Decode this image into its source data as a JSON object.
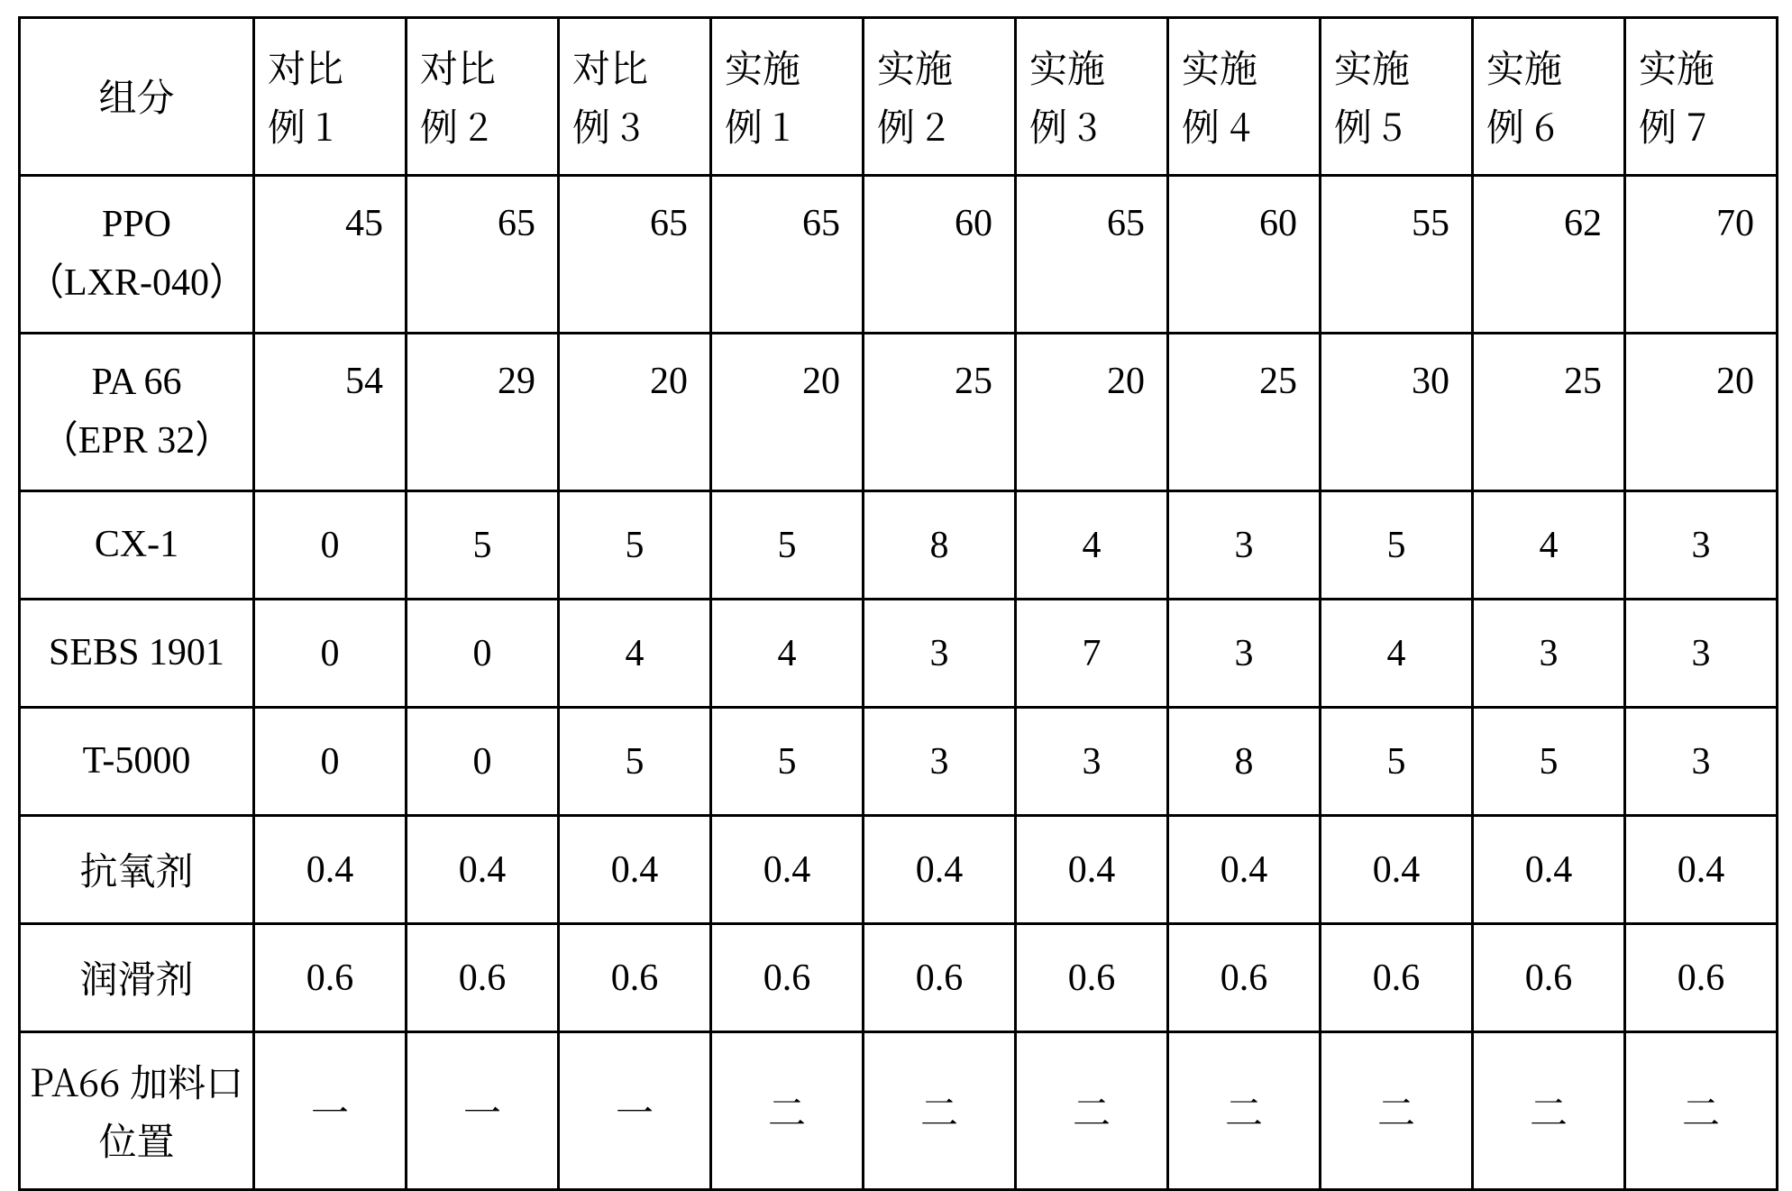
{
  "table": {
    "type": "table",
    "background_color": "#ffffff",
    "border_color": "#000000",
    "font_size_pt": 32,
    "columns": [
      {
        "key": "component",
        "label_l1": "组分",
        "label_l2": "",
        "align": "center"
      },
      {
        "key": "c1",
        "label_l1": "对比",
        "label_l2": "例 1",
        "align": "right"
      },
      {
        "key": "c2",
        "label_l1": "对比",
        "label_l2": "例 2",
        "align": "right"
      },
      {
        "key": "c3",
        "label_l1": "对比",
        "label_l2": "例 3",
        "align": "right"
      },
      {
        "key": "e1",
        "label_l1": "实施",
        "label_l2": "例 1",
        "align": "right"
      },
      {
        "key": "e2",
        "label_l1": "实施",
        "label_l2": "例 2",
        "align": "right"
      },
      {
        "key": "e3",
        "label_l1": "实施",
        "label_l2": "例 3",
        "align": "right"
      },
      {
        "key": "e4",
        "label_l1": "实施",
        "label_l2": "例 4",
        "align": "right"
      },
      {
        "key": "e5",
        "label_l1": "实施",
        "label_l2": "例 5",
        "align": "right"
      },
      {
        "key": "e6",
        "label_l1": "实施",
        "label_l2": "例 6",
        "align": "right"
      },
      {
        "key": "e7",
        "label_l1": "实施",
        "label_l2": "例 7",
        "align": "right"
      }
    ],
    "rows": [
      {
        "label_l1": "PPO",
        "label_l2": "（LXR-040）",
        "label_en": true,
        "tall": true,
        "align": "right",
        "cells": [
          "45",
          "65",
          "65",
          "65",
          "60",
          "65",
          "60",
          "55",
          "62",
          "70"
        ]
      },
      {
        "label_l1": "PA 66",
        "label_l2": "（EPR 32）",
        "label_en": true,
        "tall": true,
        "align": "right",
        "cells": [
          "54",
          "29",
          "20",
          "20",
          "25",
          "20",
          "25",
          "30",
          "25",
          "20"
        ]
      },
      {
        "label_l1": "CX-1",
        "label_l2": "",
        "label_en": true,
        "tall": false,
        "align": "center",
        "cells": [
          "0",
          "5",
          "5",
          "5",
          "8",
          "4",
          "3",
          "5",
          "4",
          "3"
        ]
      },
      {
        "label_l1": "SEBS 1901",
        "label_l2": "",
        "label_en": true,
        "tall": false,
        "align": "center",
        "cells": [
          "0",
          "0",
          "4",
          "4",
          "3",
          "7",
          "3",
          "4",
          "3",
          "3"
        ]
      },
      {
        "label_l1": "T-5000",
        "label_l2": "",
        "label_en": true,
        "tall": false,
        "align": "center",
        "cells": [
          "0",
          "0",
          "5",
          "5",
          "3",
          "3",
          "8",
          "5",
          "5",
          "3"
        ]
      },
      {
        "label_l1": "抗氧剂",
        "label_l2": "",
        "label_en": false,
        "tall": false,
        "align": "center",
        "cells": [
          "0.4",
          "0.4",
          "0.4",
          "0.4",
          "0.4",
          "0.4",
          "0.4",
          "0.4",
          "0.4",
          "0.4"
        ]
      },
      {
        "label_l1": "润滑剂",
        "label_l2": "",
        "label_en": false,
        "tall": false,
        "align": "center",
        "cells": [
          "0.6",
          "0.6",
          "0.6",
          "0.6",
          "0.6",
          "0.6",
          "0.6",
          "0.6",
          "0.6",
          "0.6"
        ]
      },
      {
        "label_l1": "PA66 加料口",
        "label_l2": "位置",
        "label_en": false,
        "tall": true,
        "align": "center_cn",
        "cells": [
          "一",
          "一",
          "一",
          "二",
          "二",
          "二",
          "二",
          "二",
          "二",
          "二"
        ]
      }
    ]
  }
}
